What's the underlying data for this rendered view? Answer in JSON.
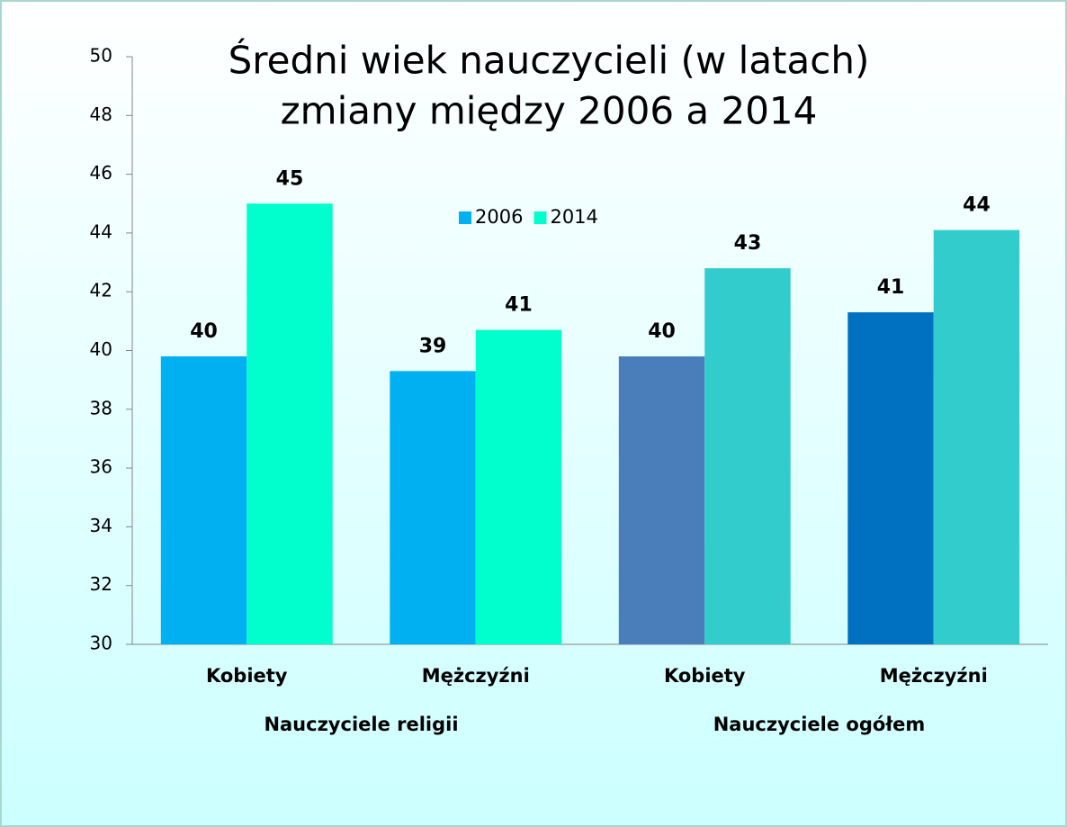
{
  "chart_data": {
    "type": "bar",
    "title": [
      "Średni wiek nauczycieli (w latach)",
      "zmiany między 2006 a 2014"
    ],
    "groups": [
      {
        "name": "Nauczyciele religii",
        "categories": [
          "Kobiety",
          "Mężczyźni"
        ]
      },
      {
        "name": "Nauczyciele ogółem",
        "categories": [
          "Kobiety",
          "Mężczyźni"
        ]
      }
    ],
    "series": [
      {
        "name": "2006",
        "color": "#00b0f0",
        "colors": [
          "#00b0f0",
          "#00b0f0",
          "#4a7ebb",
          "#0070c0"
        ],
        "values": [
          39.8,
          39.3,
          39.8,
          41.3
        ],
        "value_labels": [
          "40",
          "39",
          "40",
          "41"
        ]
      },
      {
        "name": "2014",
        "color": "#00ffcc",
        "colors": [
          "#00ffcc",
          "#00ffcc",
          "#33cccc",
          "#33cccc"
        ],
        "values": [
          45,
          40.7,
          42.8,
          44.1
        ],
        "value_labels": [
          "45",
          "41",
          "43",
          "44"
        ]
      }
    ],
    "ylim": [
      30,
      50
    ],
    "yticks": [
      30,
      32,
      34,
      36,
      38,
      40,
      42,
      44,
      46,
      48,
      50
    ],
    "grid": false,
    "legend": "top"
  }
}
